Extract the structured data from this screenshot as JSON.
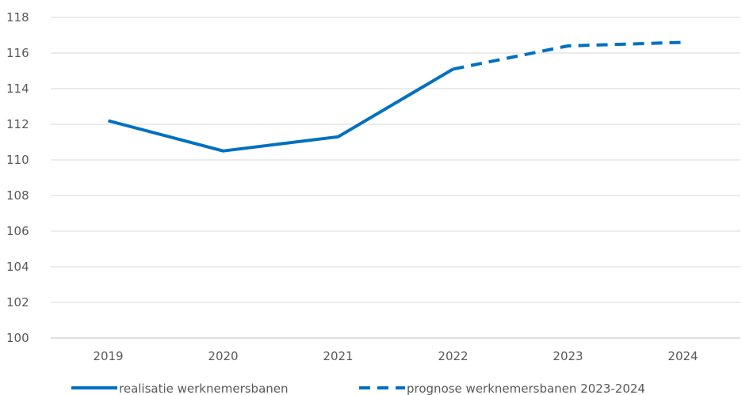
{
  "chart_data": {
    "type": "line",
    "categories": [
      "2019",
      "2020",
      "2021",
      "2022",
      "2023",
      "2024"
    ],
    "ylim": [
      100,
      118
    ],
    "yticks": [
      100,
      102,
      104,
      106,
      108,
      110,
      112,
      114,
      116,
      118
    ],
    "grid": true,
    "legend_position": "bottom",
    "series": [
      {
        "name": "realisatie werknemersbanen",
        "style": "solid",
        "color": "#0070C0",
        "points": [
          {
            "x": "2019",
            "y": 112.2
          },
          {
            "x": "2020",
            "y": 110.5
          },
          {
            "x": "2021",
            "y": 111.3
          },
          {
            "x": "2022",
            "y": 115.1
          }
        ]
      },
      {
        "name": "prognose werknemersbanen 2023-2024",
        "style": "dashed",
        "color": "#0070C0",
        "points": [
          {
            "x": "2022",
            "y": 115.1
          },
          {
            "x": "2023",
            "y": 116.4
          },
          {
            "x": "2024",
            "y": 116.6
          }
        ]
      }
    ]
  }
}
